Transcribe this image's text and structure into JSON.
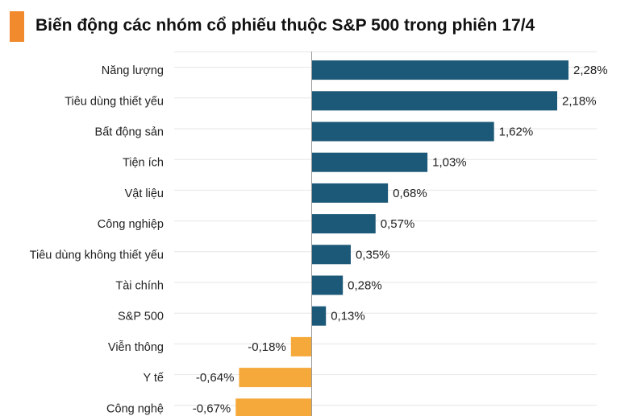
{
  "title": "Biến động các nhóm cổ phiếu thuộc S&P 500 trong phiên 17/4",
  "colors": {
    "positive": "#1c5877",
    "negative": "#f6a93b",
    "accent": "#f08a2c",
    "grid": "#e6e6e6"
  },
  "chart_data": {
    "type": "bar",
    "orientation": "horizontal",
    "title": "Biến động các nhóm cổ phiếu thuộc S&P 500 trong phiên 17/4",
    "categories": [
      "Năng lượng",
      "Tiêu dùng thiết yếu",
      "Bất động sản",
      "Tiện ích",
      "Vật liệu",
      "Công nghiệp",
      "Tiêu dùng không thiết yếu",
      "Tài chính",
      "S&P 500",
      "Viễn thông",
      "Y tế",
      "Công nghệ"
    ],
    "values": [
      2.28,
      2.18,
      1.62,
      1.03,
      0.68,
      0.57,
      0.35,
      0.28,
      0.13,
      -0.18,
      -0.64,
      -0.67
    ],
    "value_labels": [
      "2,28%",
      "2,18%",
      "1,62%",
      "1,03%",
      "0,68%",
      "0,57%",
      "0,35%",
      "0,28%",
      "0,13%",
      "-0,18%",
      "-0,64%",
      "-0,67%"
    ],
    "xlim": [
      -1.15,
      2.6
    ],
    "grid": true,
    "legend": "none"
  }
}
